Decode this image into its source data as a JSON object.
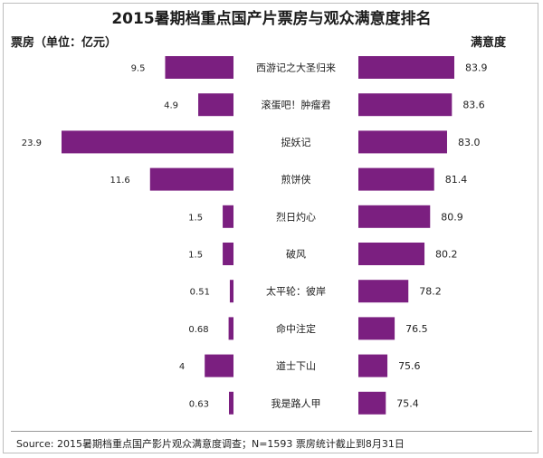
{
  "title": "2015暑期档重点国产片票房与观众满意度排名",
  "left_axis_label": "票房（单位：亿元）",
  "right_axis_label": "满意度",
  "source_note": "Source: 2015暑期档重点国产影片观众满意度调查；N=1593    票房统计截止到8月31日",
  "colors": {
    "bar": "#7b1f80",
    "text": "#222222",
    "divider": "#9a9a9a"
  },
  "chart_data": [
    {
      "type": "bar",
      "orientation": "horizontal",
      "direction": "leftward",
      "name": "票房（单位：亿元）",
      "categories": [
        "西游记之大圣归来",
        "滚蛋吧！肿瘤君",
        "捉妖记",
        "煎饼侠",
        "烈日灼心",
        "破风",
        "太平轮：彼岸",
        "命中注定",
        "道士下山",
        "我是路人甲"
      ],
      "values": [
        9.5,
        4.9,
        23.9,
        11.6,
        1.5,
        1.5,
        0.51,
        0.68,
        4,
        0.63
      ],
      "value_labels": [
        "9.5",
        "4.9",
        "23.9",
        "11.6",
        "1.5",
        "1.5",
        "0.51",
        "0.68",
        "4",
        "0.63"
      ],
      "xlim": [
        0,
        25
      ]
    },
    {
      "type": "bar",
      "orientation": "horizontal",
      "direction": "rightward",
      "name": "满意度",
      "categories": [
        "西游记之大圣归来",
        "滚蛋吧！肿瘤君",
        "捉妖记",
        "煎饼侠",
        "烈日灼心",
        "破风",
        "太平轮：彼岸",
        "命中注定",
        "道士下山",
        "我是路人甲"
      ],
      "values": [
        83.9,
        83.6,
        83.0,
        81.4,
        80.9,
        80.2,
        78.2,
        76.5,
        75.6,
        75.4
      ],
      "value_labels": [
        "83.9",
        "83.6",
        "83.0",
        "81.4",
        "80.9",
        "80.2",
        "78.2",
        "76.5",
        "75.6",
        "75.4"
      ],
      "xlim": [
        72,
        84
      ]
    }
  ]
}
